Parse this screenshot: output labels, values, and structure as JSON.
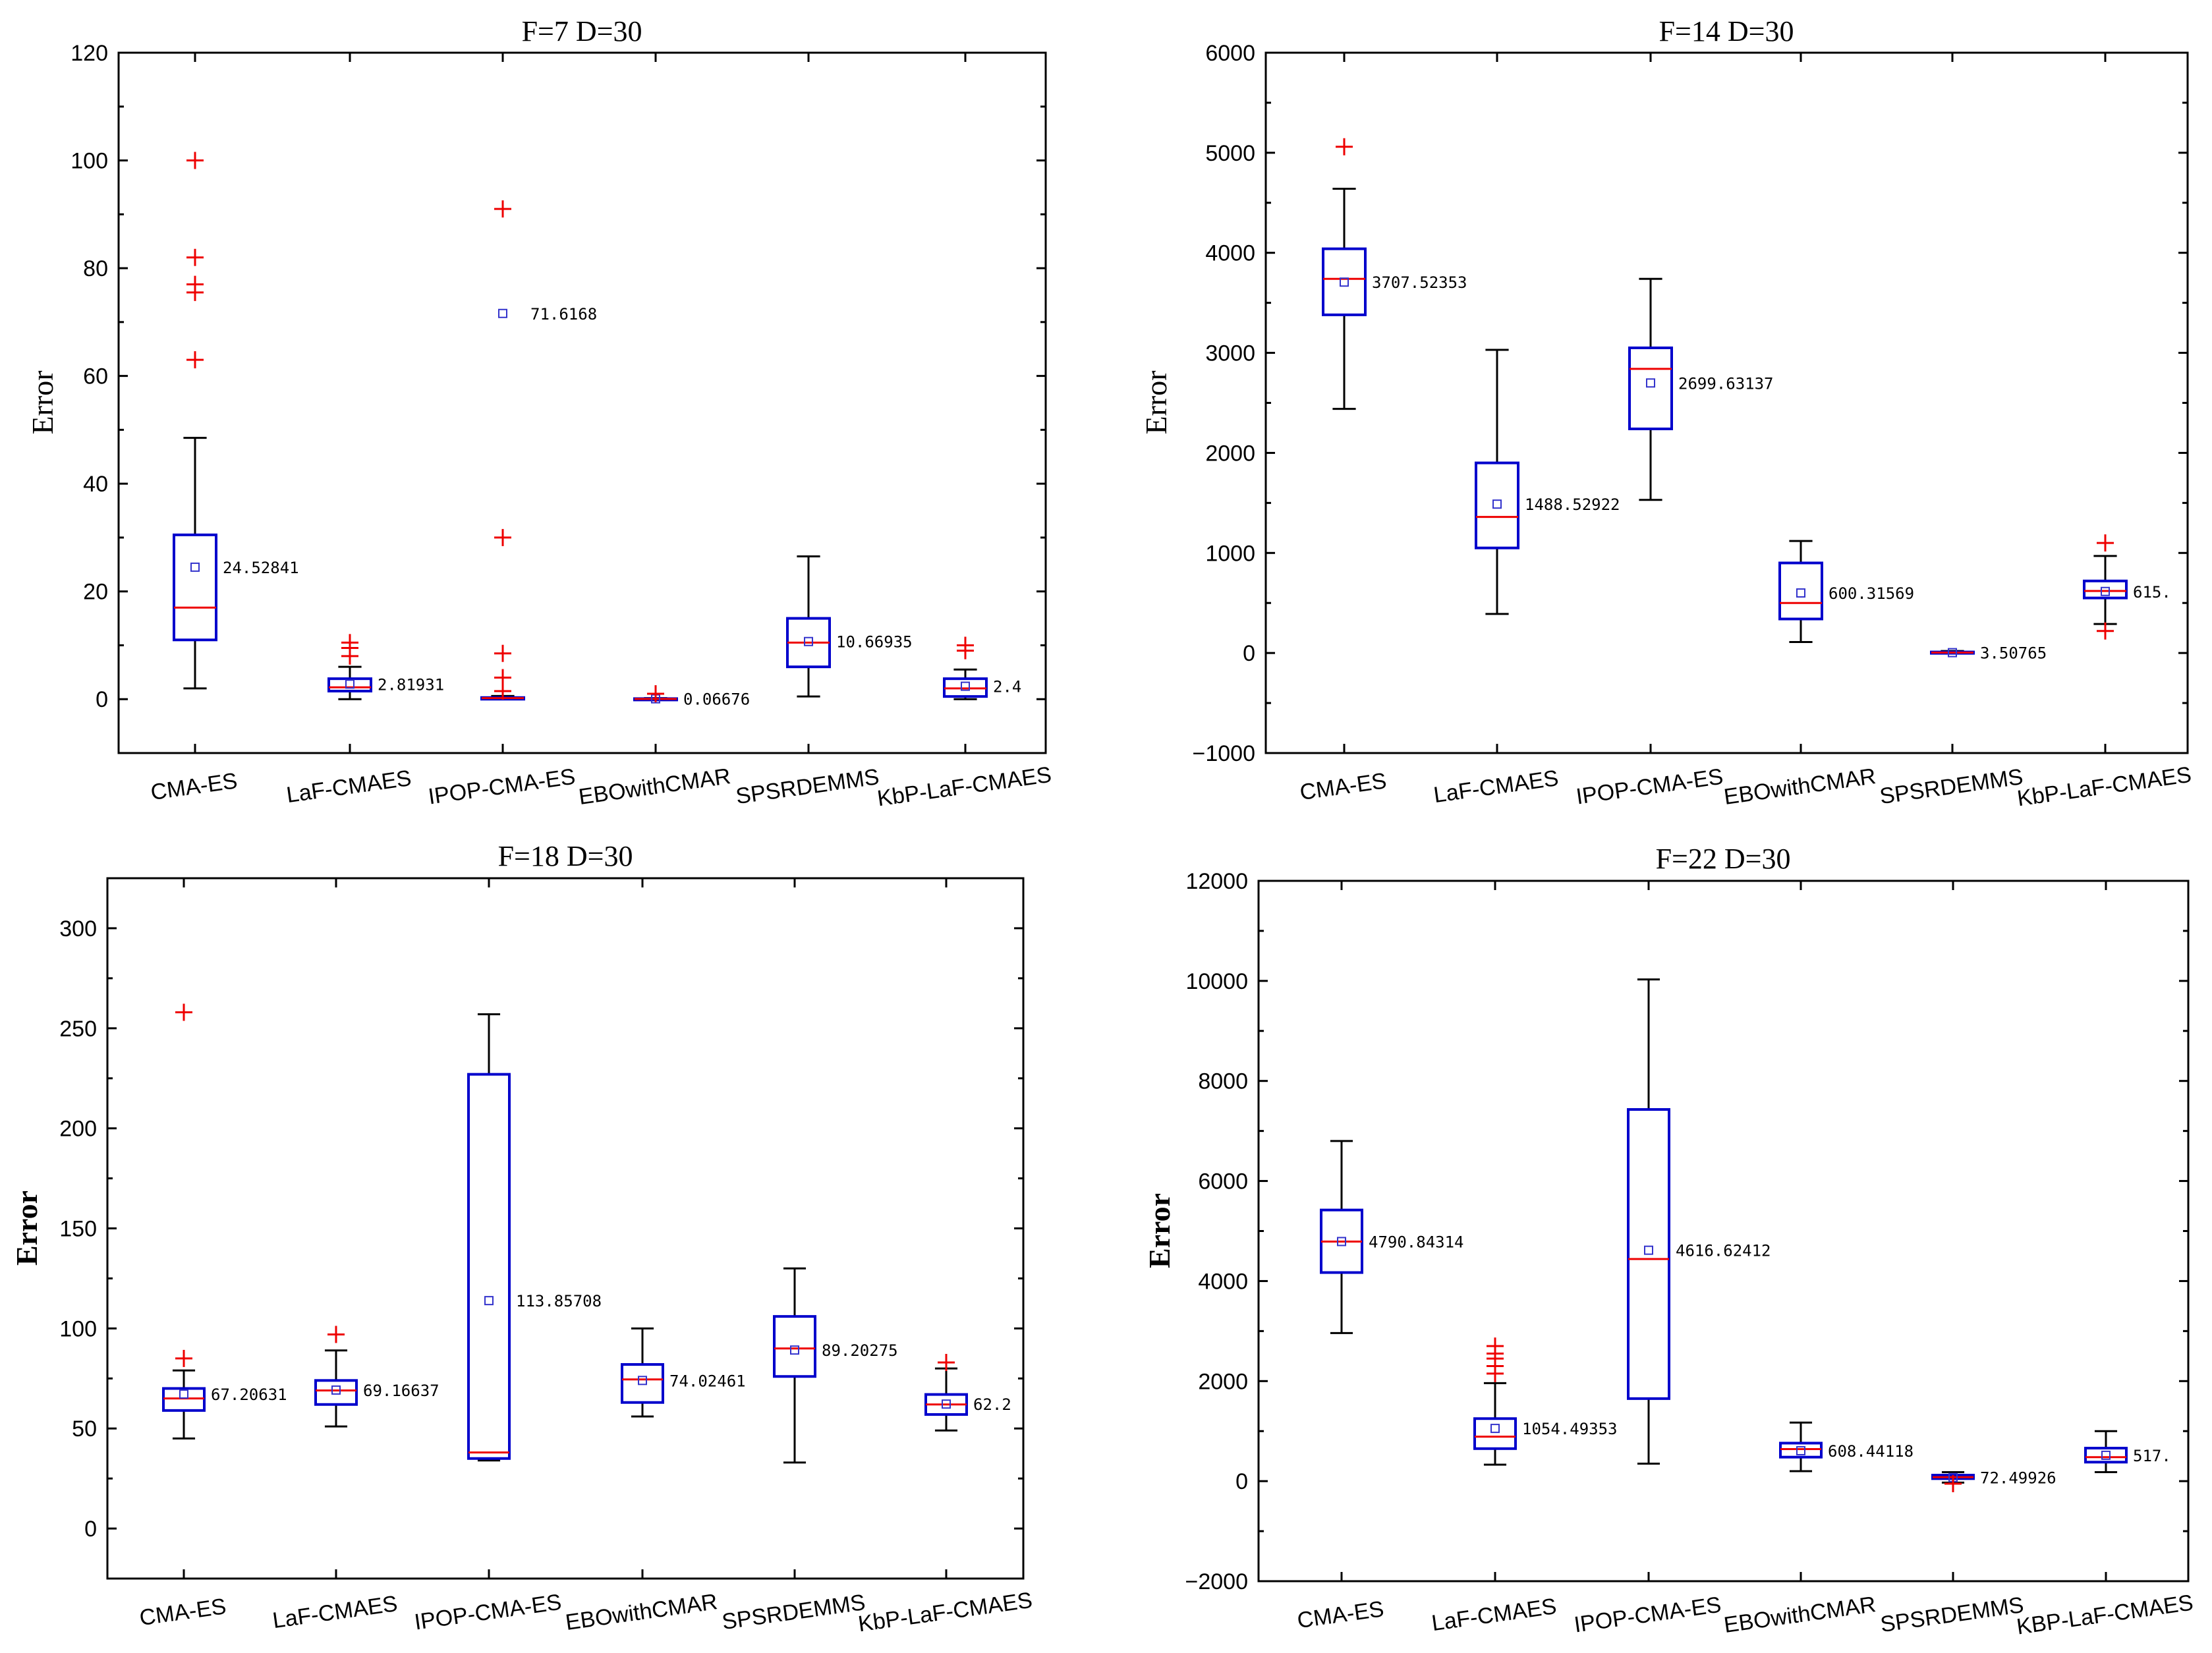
{
  "colors": {
    "box": "#0000cc",
    "median": "#ee0000",
    "outlier": "#ee0000",
    "mean": "#3333cc",
    "whisker": "#000000"
  },
  "chart_data": [
    {
      "type": "box",
      "title": "F=7 D=30",
      "ylabel": "Error",
      "ylabel_bold": false,
      "ylim": [
        -10,
        120
      ],
      "yticks": [
        "0",
        "20",
        "40",
        "60",
        "80",
        "100",
        "120"
      ],
      "categories": [
        "CMA-ES",
        "LaF-CMAES",
        "IPOP-CMA-ES",
        "EBOwithCMAR",
        "SPSRDEMMS",
        "KbP-LaF-CMAES"
      ],
      "boxes": [
        {
          "whislo": 2,
          "q1": 11,
          "med": 17,
          "q3": 30.5,
          "whishi": 48.5,
          "mean": 24.5,
          "mean_label": "24.52841",
          "outliers": [
            63,
            75.5,
            77,
            82,
            100
          ]
        },
        {
          "whislo": 0,
          "q1": 1.5,
          "med": 2.2,
          "q3": 3.8,
          "whishi": 6,
          "mean": 2.8,
          "mean_label": "2.81931",
          "outliers": [
            8,
            9.5,
            10.5
          ]
        },
        {
          "whislo": 0,
          "q1": 0,
          "med": 0.2,
          "q3": 0.3,
          "whishi": 0.6,
          "mean": 71.6,
          "mean_label": "71.6168",
          "outliers": [
            1.5,
            4,
            8.5,
            30,
            91
          ]
        },
        {
          "whislo": 0,
          "q1": 0,
          "med": 0.05,
          "q3": 0.1,
          "whishi": 0.2,
          "mean": 0.07,
          "mean_label": "0.06676",
          "outliers": [
            1
          ]
        },
        {
          "whislo": 0.5,
          "q1": 6,
          "med": 10.5,
          "q3": 15,
          "whishi": 26.5,
          "mean": 10.7,
          "mean_label": "10.66935",
          "outliers": []
        },
        {
          "whislo": 0,
          "q1": 0.5,
          "med": 2,
          "q3": 3.8,
          "whishi": 5.5,
          "mean": 2.4,
          "mean_label": "2.4",
          "outliers": [
            9,
            10
          ]
        }
      ]
    },
    {
      "type": "box",
      "title": "F=14  D=30",
      "ylabel": "Error",
      "ylabel_bold": false,
      "ylim": [
        -1000,
        6000
      ],
      "yticks": [
        "−1000",
        "0",
        "1000",
        "2000",
        "3000",
        "4000",
        "5000",
        "6000"
      ],
      "categories": [
        "CMA-ES",
        "LaF-CMAES",
        "IPOP-CMA-ES",
        "EBOwithCMAR",
        "SPSRDEMMS",
        "KbP-LaF-CMAES"
      ],
      "boxes": [
        {
          "whislo": 2440,
          "q1": 3380,
          "med": 3740,
          "q3": 4040,
          "whishi": 4640,
          "mean": 3707,
          "mean_label": "3707.52353",
          "outliers": [
            5060
          ]
        },
        {
          "whislo": 390,
          "q1": 1050,
          "med": 1360,
          "q3": 1900,
          "whishi": 3030,
          "mean": 1488,
          "mean_label": "1488.52922",
          "outliers": []
        },
        {
          "whislo": 1530,
          "q1": 2240,
          "med": 2840,
          "q3": 3050,
          "whishi": 3740,
          "mean": 2699,
          "mean_label": "2699.63137",
          "outliers": []
        },
        {
          "whislo": 110,
          "q1": 340,
          "med": 500,
          "q3": 900,
          "whishi": 1120,
          "mean": 600,
          "mean_label": "600.31569",
          "outliers": []
        },
        {
          "whislo": 0,
          "q1": 0,
          "med": 4,
          "q3": 10,
          "whishi": 20,
          "mean": 3.5,
          "mean_label": "3.50765",
          "outliers": []
        },
        {
          "whislo": 290,
          "q1": 550,
          "med": 620,
          "q3": 720,
          "whishi": 970,
          "mean": 615,
          "mean_label": "615.",
          "outliers": [
            220,
            1100
          ]
        }
      ]
    },
    {
      "type": "box",
      "title": "F=18 D=30",
      "ylabel": "Error",
      "ylabel_bold": true,
      "ylim": [
        -25,
        325
      ],
      "yticks": [
        "0",
        "50",
        "100",
        "150",
        "200",
        "250",
        "300"
      ],
      "categories": [
        "CMA-ES",
        "LaF-CMAES",
        "IPOP-CMA-ES",
        "EBOwithCMAR",
        "SPSRDEMMS",
        "KbP-LaF-CMAES"
      ],
      "boxes": [
        {
          "whislo": 45,
          "q1": 59,
          "med": 65,
          "q3": 70,
          "whishi": 79,
          "mean": 67.2,
          "mean_label": "67.20631",
          "outliers": [
            85,
            258
          ]
        },
        {
          "whislo": 51,
          "q1": 62,
          "med": 69,
          "q3": 74,
          "whishi": 89,
          "mean": 69.2,
          "mean_label": "69.16637",
          "outliers": [
            97
          ]
        },
        {
          "whislo": 34,
          "q1": 35,
          "med": 38,
          "q3": 227,
          "whishi": 257,
          "mean": 113.9,
          "mean_label": "113.85708",
          "outliers": []
        },
        {
          "whislo": 56,
          "q1": 63,
          "med": 74.5,
          "q3": 82,
          "whishi": 100,
          "mean": 74.0,
          "mean_label": "74.02461",
          "outliers": []
        },
        {
          "whislo": 33,
          "q1": 76,
          "med": 90,
          "q3": 106,
          "whishi": 130,
          "mean": 89.2,
          "mean_label": "89.20275",
          "outliers": []
        },
        {
          "whislo": 49,
          "q1": 57,
          "med": 62,
          "q3": 67,
          "whishi": 80,
          "mean": 62.2,
          "mean_label": "62.2",
          "outliers": [
            83
          ]
        }
      ]
    },
    {
      "type": "box",
      "title": "F=22 D=30",
      "ylabel": "Error",
      "ylabel_bold": true,
      "ylim": [
        -2000,
        12000
      ],
      "yticks": [
        "−2000",
        "0",
        "2000",
        "4000",
        "6000",
        "8000",
        "10000",
        "12000"
      ],
      "categories": [
        "CMA-ES",
        "LaF-CMAES",
        "IPOP-CMA-ES",
        "EBOwithCMAR",
        "SPSRDEMMS",
        "KBP-LaF-CMAES"
      ],
      "boxes": [
        {
          "whislo": 2960,
          "q1": 4170,
          "med": 4790,
          "q3": 5420,
          "whishi": 6800,
          "mean": 4790,
          "mean_label": "4790.84314",
          "outliers": []
        },
        {
          "whislo": 330,
          "q1": 650,
          "med": 890,
          "q3": 1250,
          "whishi": 1960,
          "mean": 1054,
          "mean_label": "1054.49353",
          "outliers": [
            2150,
            2300,
            2450,
            2550,
            2700
          ]
        },
        {
          "whislo": 350,
          "q1": 1650,
          "med": 4440,
          "q3": 7430,
          "whishi": 10030,
          "mean": 4616,
          "mean_label": "4616.62412",
          "outliers": []
        },
        {
          "whislo": 200,
          "q1": 480,
          "med": 640,
          "q3": 760,
          "whishi": 1170,
          "mean": 608,
          "mean_label": "608.44118",
          "outliers": []
        },
        {
          "whislo": -30,
          "q1": 50,
          "med": 80,
          "q3": 120,
          "whishi": 180,
          "mean": 72.5,
          "mean_label": "72.49926",
          "outliers": [
            -50
          ]
        },
        {
          "whislo": 180,
          "q1": 380,
          "med": 480,
          "q3": 660,
          "whishi": 1000,
          "mean": 517,
          "mean_label": "517.",
          "outliers": []
        }
      ]
    }
  ]
}
